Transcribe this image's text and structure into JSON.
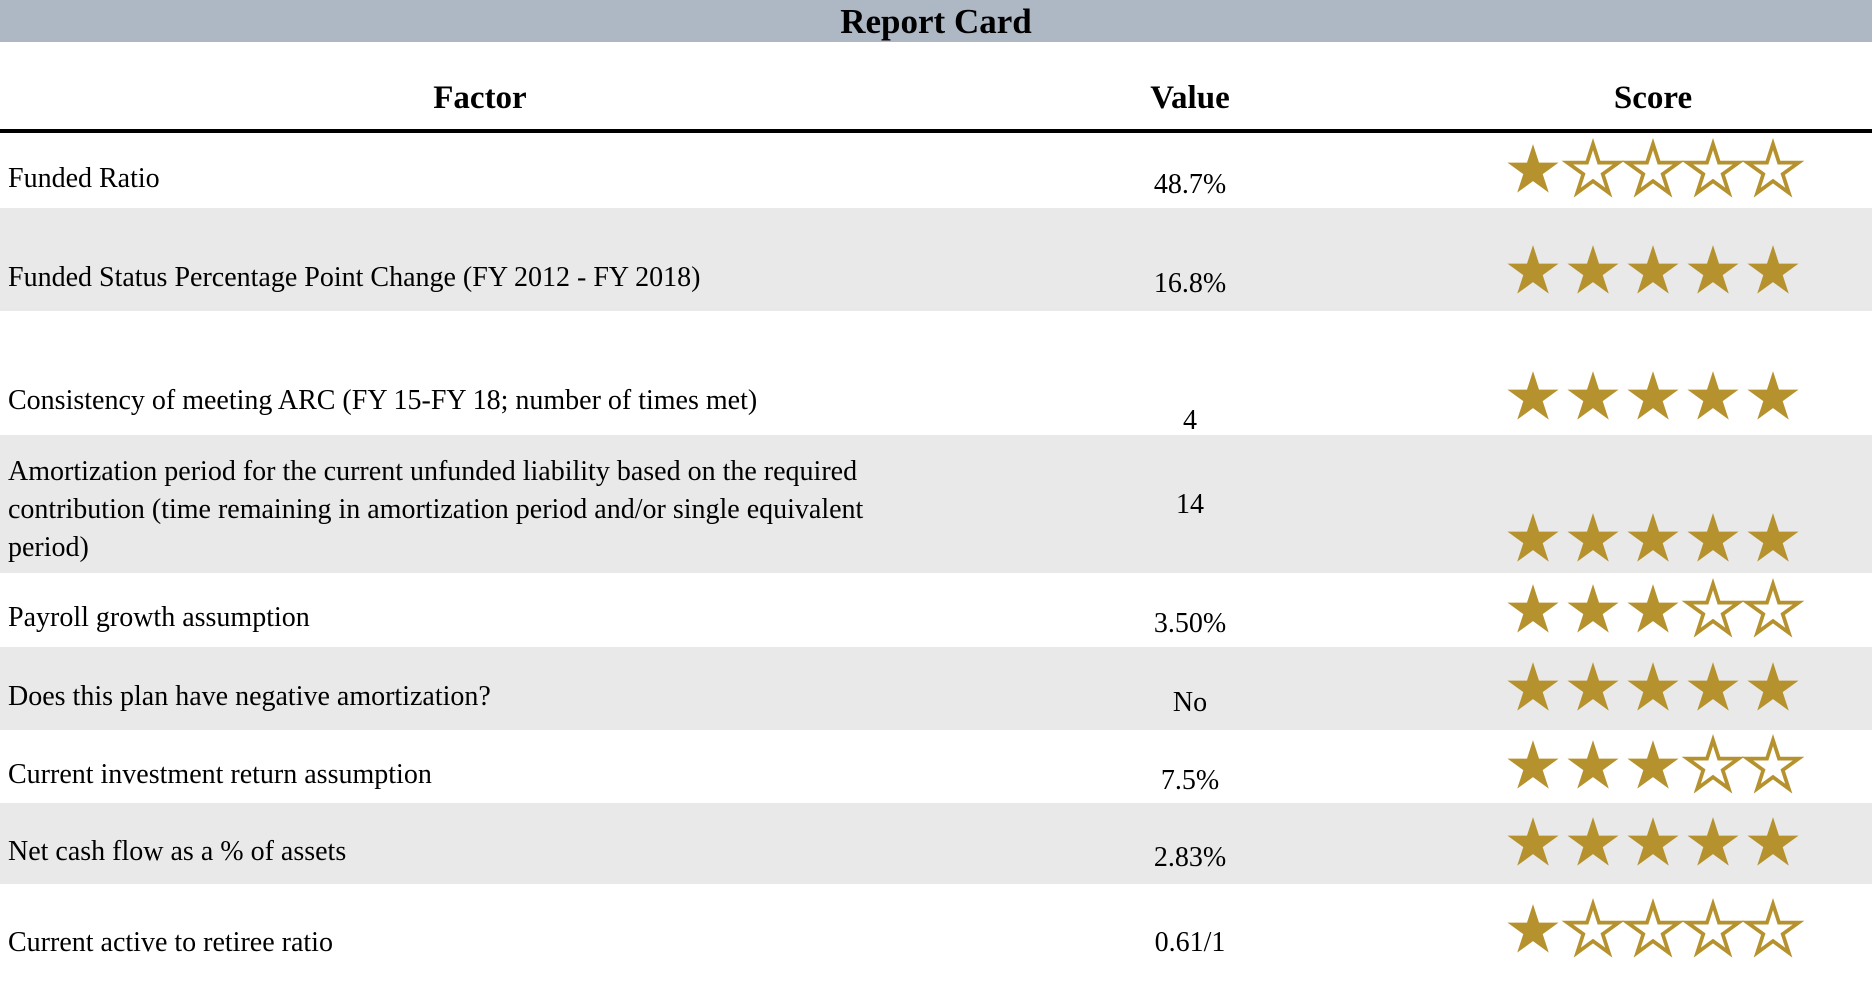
{
  "title": "Report Card",
  "columns": {
    "factor": "Factor",
    "value": "Value",
    "score": "Score"
  },
  "score_max": 5,
  "colors": {
    "header_bar": "#AEB7C4",
    "row_shade": "#E9E9E9",
    "star_gold": "#B6922F"
  },
  "rows": [
    {
      "factor": "Funded Ratio",
      "value": "48.7%",
      "score": 1,
      "shaded": false
    },
    {
      "factor": "Funded Status Percentage Point Change (FY 2012 - FY 2018)",
      "value": "16.8%",
      "score": 5,
      "shaded": true
    },
    {
      "factor": "Consistency of meeting ARC (FY 15-FY 18; number of times met)",
      "value": "4",
      "score": 5,
      "shaded": false
    },
    {
      "factor": "Amortization period for the current unfunded liability based on the required contribution (time remaining in amortization period and/or single equivalent period)",
      "value": "14",
      "score": 5,
      "shaded": true
    },
    {
      "factor": "Payroll growth assumption",
      "value": "3.50%",
      "score": 3,
      "shaded": false
    },
    {
      "factor": "Does this plan have negative amortization?",
      "value": "No",
      "score": 5,
      "shaded": true
    },
    {
      "factor": "Current investment return assumption",
      "value": "7.5%",
      "score": 3,
      "shaded": false
    },
    {
      "factor": "Net cash flow as a % of assets",
      "value": "2.83%",
      "score": 5,
      "shaded": true
    },
    {
      "factor": "Current active to retiree ratio",
      "value": "0.61/1",
      "score": 1,
      "shaded": false
    }
  ]
}
